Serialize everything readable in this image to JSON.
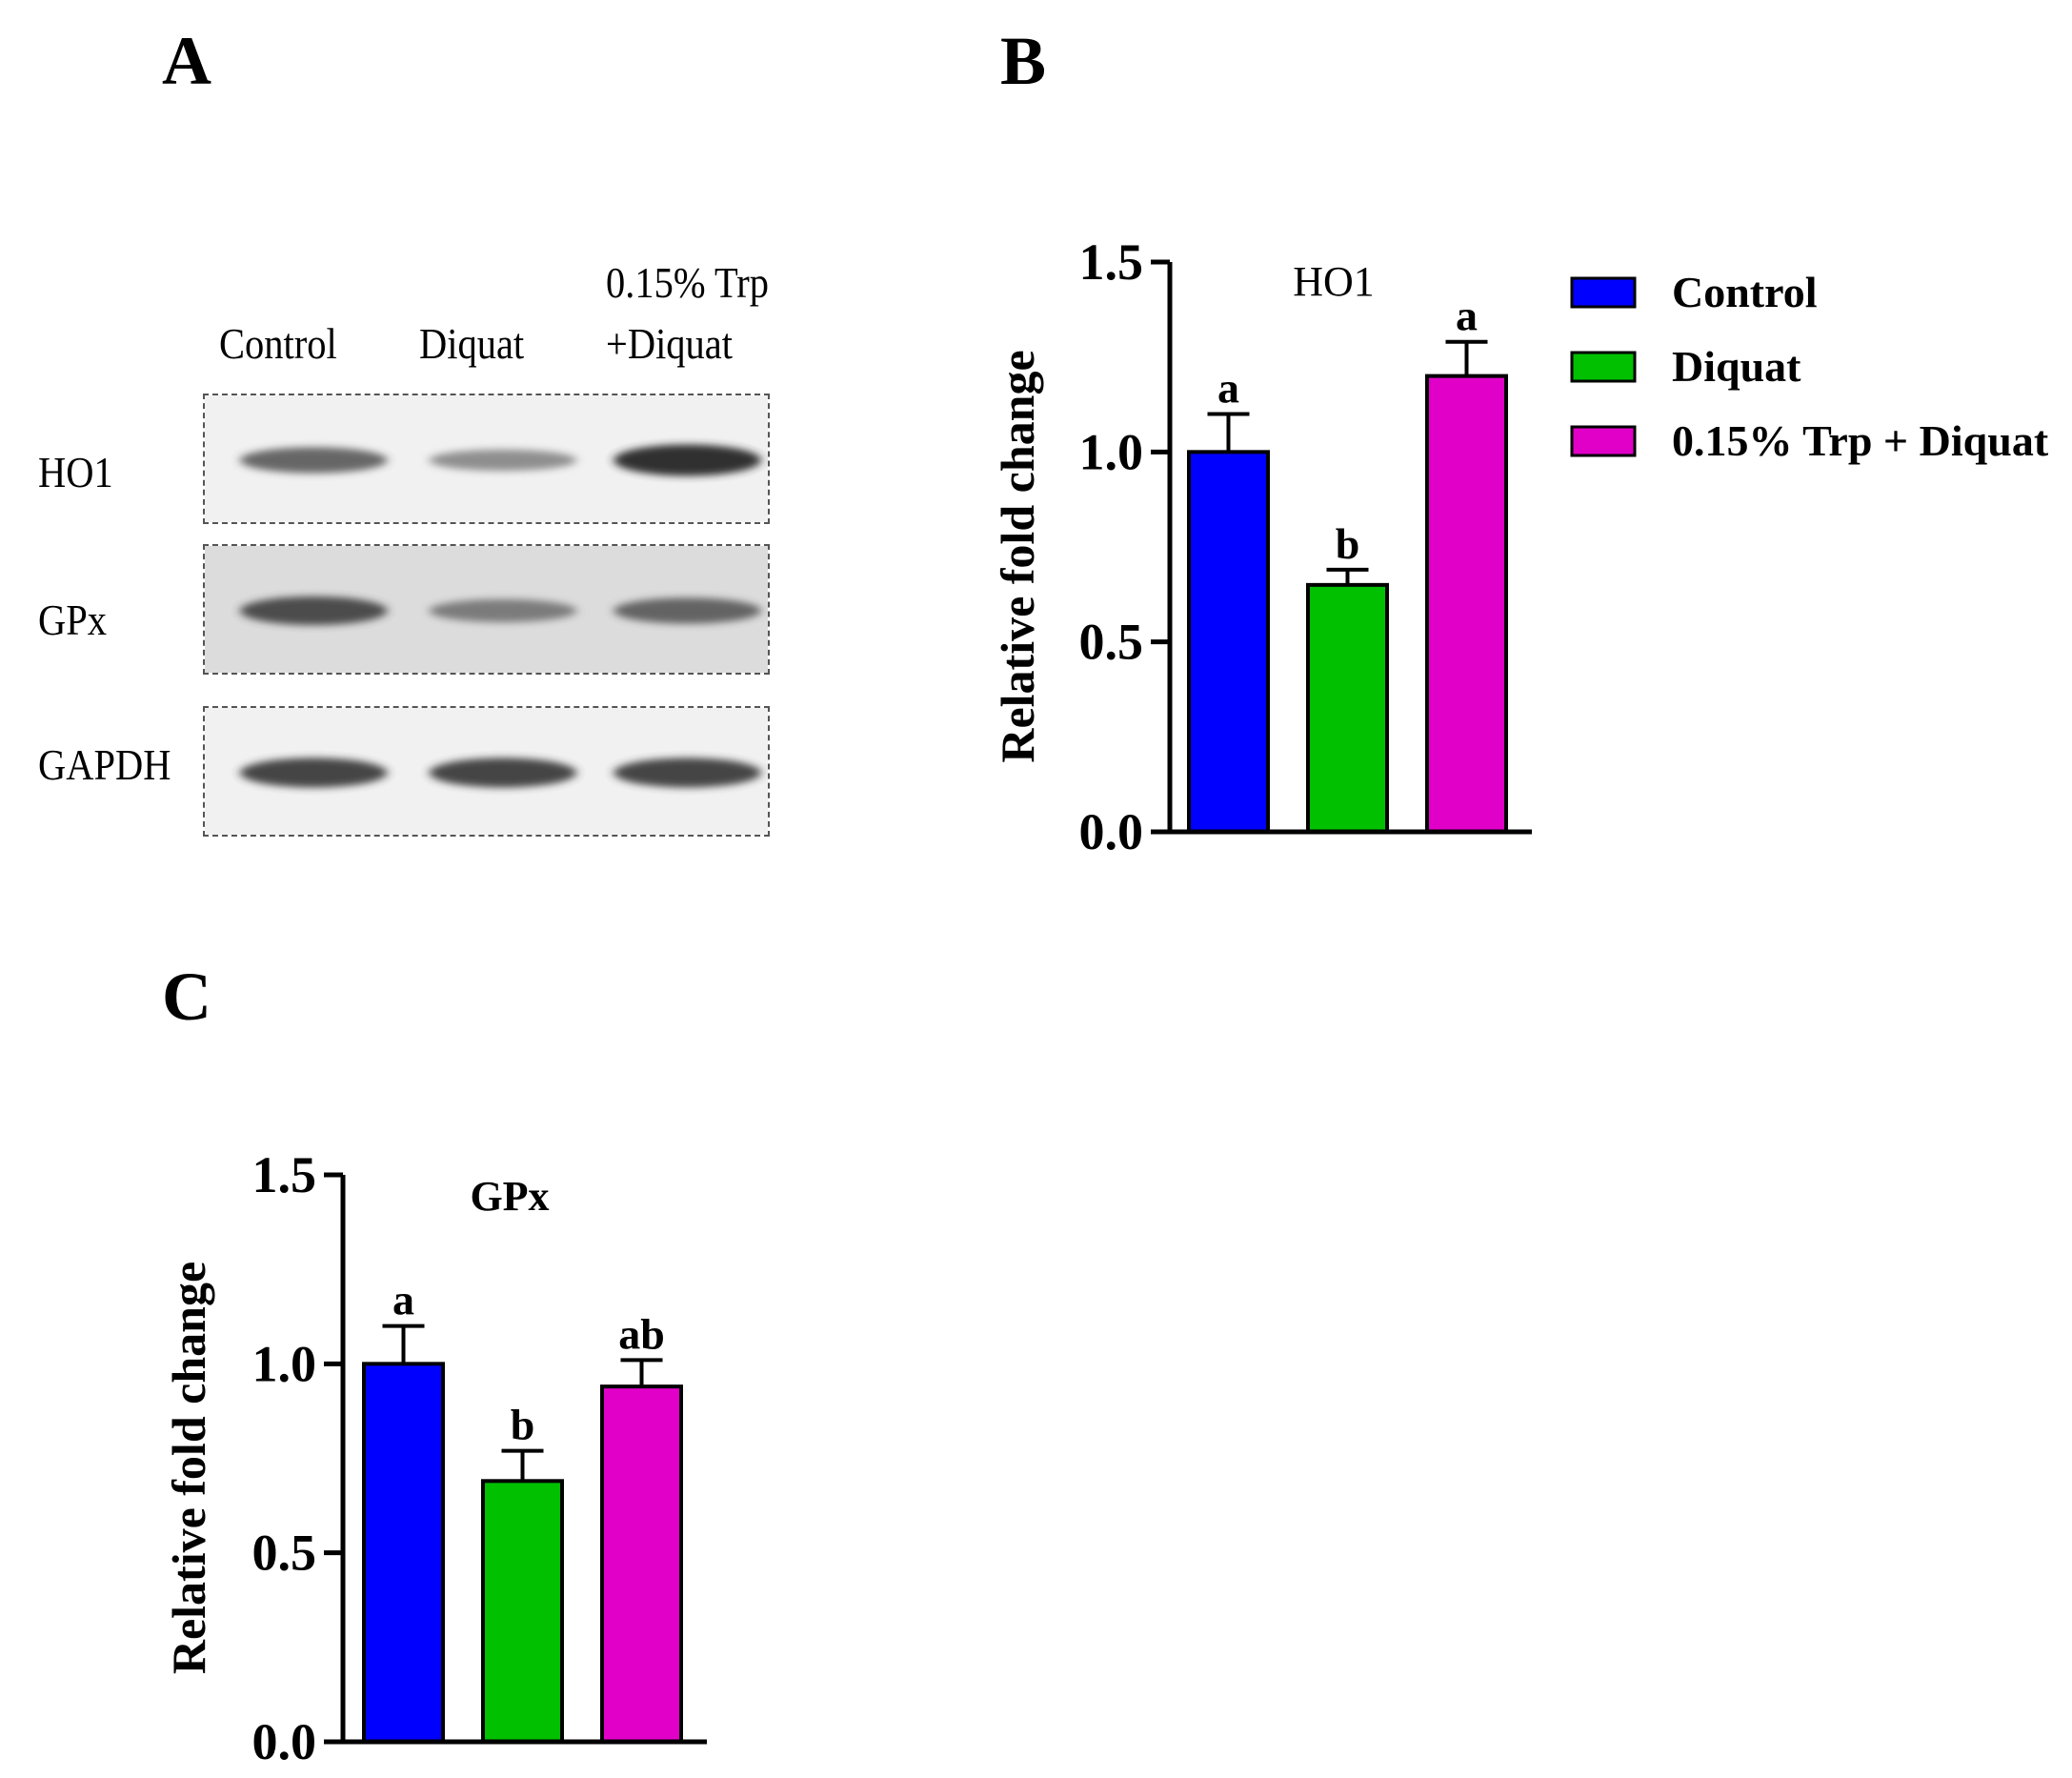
{
  "panels": {
    "a": "A",
    "b": "B",
    "c": "C"
  },
  "blot": {
    "lanes": [
      {
        "line1": "Control",
        "line2": ""
      },
      {
        "line1": "Diquat",
        "line2": ""
      },
      {
        "line1": "0.15% Trp",
        "line2": "+Diquat"
      }
    ],
    "rows": [
      {
        "label": "HO1",
        "intensity": [
          0.7,
          0.45,
          1.0
        ]
      },
      {
        "label": "GPx",
        "intensity": [
          0.85,
          0.55,
          0.7
        ]
      },
      {
        "label": "GAPDH",
        "intensity": [
          0.9,
          0.9,
          0.9
        ]
      }
    ]
  },
  "chart_data": [
    {
      "type": "bar",
      "title": "HO1",
      "ylabel": "Relative fold change",
      "ylim": [
        0,
        1.5
      ],
      "yticks": [
        "0.0",
        "0.5",
        "1.0",
        "1.5"
      ],
      "categories": [
        "Control",
        "Diquat",
        "0.15% Trp + Diquat"
      ],
      "values": [
        1.0,
        0.65,
        1.2
      ],
      "errors": [
        0.1,
        0.04,
        0.09
      ],
      "significance": [
        "a",
        "b",
        "a"
      ],
      "colors": [
        "#0000ff",
        "#00c000",
        "#e000c8"
      ],
      "legend": {
        "placement": "right",
        "entries": [
          "Control",
          "Diquat",
          "0.15% Trp + Diquat"
        ]
      }
    },
    {
      "type": "bar",
      "title": "GPx",
      "ylabel": "Relative fold change",
      "ylim": [
        0,
        1.5
      ],
      "yticks": [
        "0.0",
        "0.5",
        "1.0",
        "1.5"
      ],
      "categories": [
        "Control",
        "Diquat",
        "0.15% Trp + Diquat"
      ],
      "values": [
        1.0,
        0.69,
        0.94
      ],
      "errors": [
        0.1,
        0.08,
        0.07
      ],
      "significance": [
        "a",
        "b",
        "ab"
      ],
      "colors": [
        "#0000ff",
        "#00c000",
        "#e000c8"
      ]
    }
  ]
}
